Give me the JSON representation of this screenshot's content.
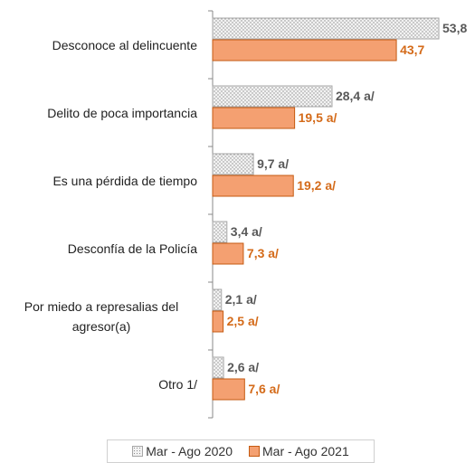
{
  "chart_data": {
    "type": "bar",
    "orientation": "horizontal",
    "categories": [
      "Desconoce al delincuente",
      "Delito de poca importancia",
      "Es una pérdida de tiempo",
      "Desconfía de la Policía",
      "Por miedo a represalias del agresor(a)",
      "Otro 1/"
    ],
    "series": [
      {
        "name": "Mar - Ago 2020",
        "color": "#e6e6e6",
        "values": [
          53.8,
          28.4,
          9.7,
          3.4,
          2.1,
          2.6
        ],
        "value_labels": [
          "53,8",
          "28,4 a/",
          "9,7 a/",
          "3,4 a/",
          "2,1 a/",
          "2,6 a/"
        ]
      },
      {
        "name": "Mar - Ago 2021",
        "color": "#f4a071",
        "values": [
          43.7,
          19.5,
          19.2,
          7.3,
          2.5,
          7.6
        ],
        "value_labels": [
          "43,7",
          "19,5 a/",
          "19,2 a/",
          "7,3 a/",
          "2,5 a/",
          "7,6 a/"
        ]
      }
    ],
    "xlim": [
      0,
      55
    ]
  }
}
